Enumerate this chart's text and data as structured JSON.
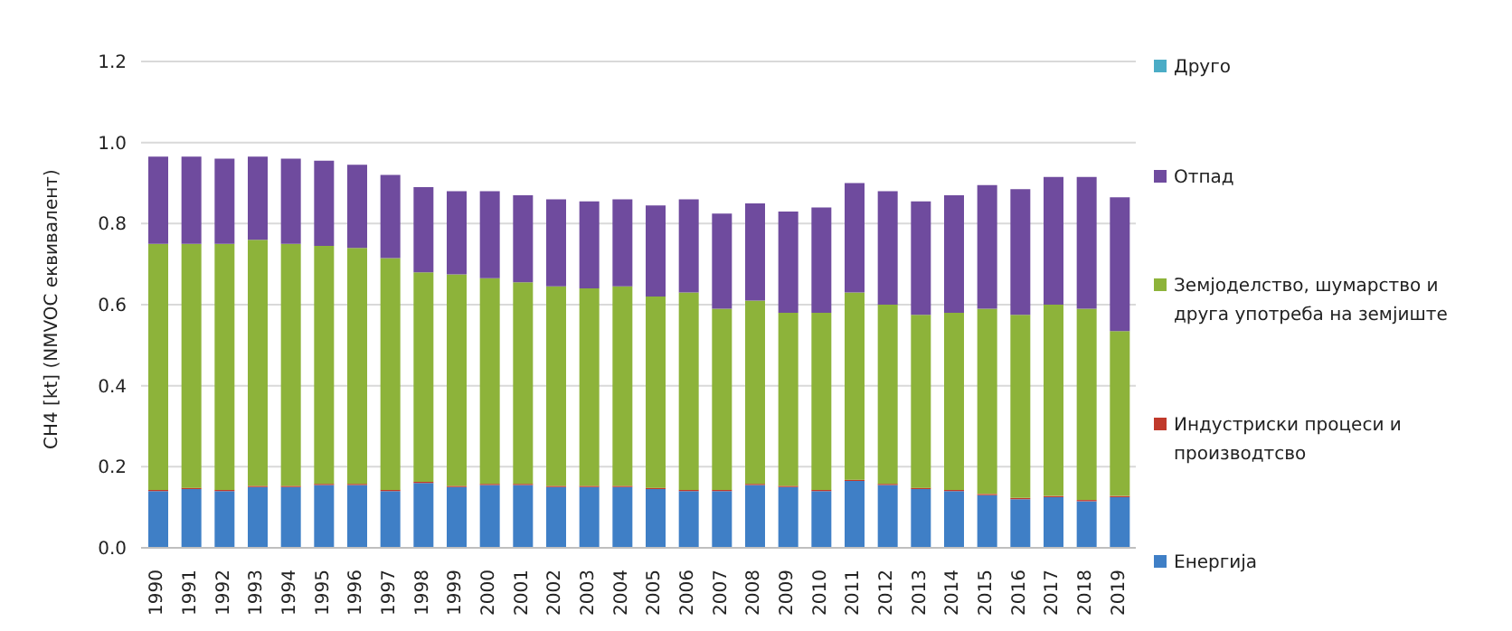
{
  "chart_data": {
    "type": "bar",
    "stacked": true,
    "ylabel": "CH4 [kt] (NMVOC еквивалент)",
    "categories": [
      "1990",
      "1991",
      "1992",
      "1993",
      "1994",
      "1995",
      "1996",
      "1997",
      "1998",
      "1999",
      "2000",
      "2001",
      "2002",
      "2003",
      "2004",
      "2005",
      "2006",
      "2007",
      "2008",
      "2009",
      "2010",
      "2011",
      "2012",
      "2013",
      "2014",
      "2015",
      "2016",
      "2017",
      "2018",
      "2019"
    ],
    "series": [
      {
        "name": "Енергија",
        "color": "#3f7fc6",
        "values": [
          0.14,
          0.145,
          0.14,
          0.15,
          0.15,
          0.155,
          0.155,
          0.14,
          0.16,
          0.15,
          0.155,
          0.155,
          0.15,
          0.15,
          0.15,
          0.145,
          0.14,
          0.14,
          0.155,
          0.15,
          0.14,
          0.165,
          0.155,
          0.145,
          0.14,
          0.13,
          0.12,
          0.125,
          0.115,
          0.125
        ]
      },
      {
        "name": "Индустриски процеси и производтсво",
        "color": "#c0392b",
        "values": [
          0.003,
          0.003,
          0.003,
          0.003,
          0.003,
          0.003,
          0.003,
          0.003,
          0.003,
          0.003,
          0.003,
          0.003,
          0.003,
          0.003,
          0.003,
          0.003,
          0.003,
          0.003,
          0.003,
          0.003,
          0.003,
          0.003,
          0.003,
          0.003,
          0.003,
          0.003,
          0.003,
          0.003,
          0.003,
          0.003
        ]
      },
      {
        "name": "Земјоделство, шумарство и друга употреба на земјиште",
        "color": "#8db33a",
        "values": [
          0.607,
          0.602,
          0.607,
          0.607,
          0.597,
          0.587,
          0.582,
          0.572,
          0.517,
          0.522,
          0.507,
          0.497,
          0.492,
          0.487,
          0.492,
          0.472,
          0.487,
          0.447,
          0.452,
          0.427,
          0.437,
          0.462,
          0.442,
          0.427,
          0.437,
          0.457,
          0.452,
          0.472,
          0.472,
          0.407
        ]
      },
      {
        "name": "Отпад",
        "color": "#6f4b9e",
        "values": [
          0.215,
          0.215,
          0.21,
          0.205,
          0.21,
          0.21,
          0.205,
          0.205,
          0.21,
          0.205,
          0.215,
          0.215,
          0.215,
          0.215,
          0.215,
          0.225,
          0.23,
          0.235,
          0.24,
          0.25,
          0.26,
          0.27,
          0.28,
          0.28,
          0.29,
          0.305,
          0.31,
          0.315,
          0.325,
          0.33
        ]
      },
      {
        "name": "Друго",
        "color": "#4bacc6",
        "values": [
          0,
          0,
          0,
          0,
          0,
          0,
          0,
          0,
          0,
          0,
          0,
          0,
          0,
          0,
          0,
          0,
          0,
          0,
          0,
          0,
          0,
          0,
          0,
          0,
          0,
          0,
          0,
          0,
          0,
          0
        ]
      }
    ],
    "ylim": [
      0,
      1.2
    ],
    "yticks": [
      {
        "value": 0,
        "label": "0.0"
      },
      0.2,
      0.4,
      0.6,
      0.8,
      {
        "value": 1,
        "label": "1.0"
      },
      1.2
    ],
    "grid": "y",
    "legend": "right"
  }
}
